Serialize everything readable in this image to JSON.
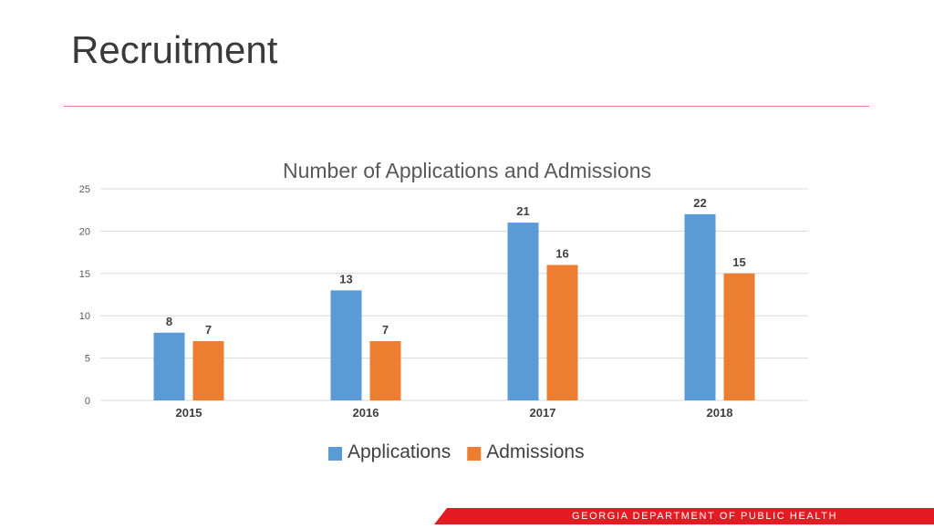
{
  "slide": {
    "title": "Recruitment",
    "footer": "GEORGIA DEPARTMENT OF PUBLIC HEALTH"
  },
  "colors": {
    "applications": "#5b9bd5",
    "admissions": "#ed7d31",
    "gridline": "#d9d9d9",
    "rule": "#e8828a",
    "footer_band": "#e31c24"
  },
  "chart_data": {
    "type": "bar",
    "title": "Number of Applications and Admissions",
    "categories": [
      "2015",
      "2016",
      "2017",
      "2018"
    ],
    "series": [
      {
        "name": "Applications",
        "values": [
          8,
          13,
          21,
          22
        ]
      },
      {
        "name": "Admissions",
        "values": [
          7,
          7,
          16,
          15
        ]
      }
    ],
    "y_ticks": [
      "0",
      "5",
      "10",
      "15",
      "20",
      "25"
    ],
    "ylim": [
      0,
      25
    ],
    "xlabel": "",
    "ylabel": "",
    "grid": true,
    "data_labels": true,
    "legend_position": "bottom"
  }
}
